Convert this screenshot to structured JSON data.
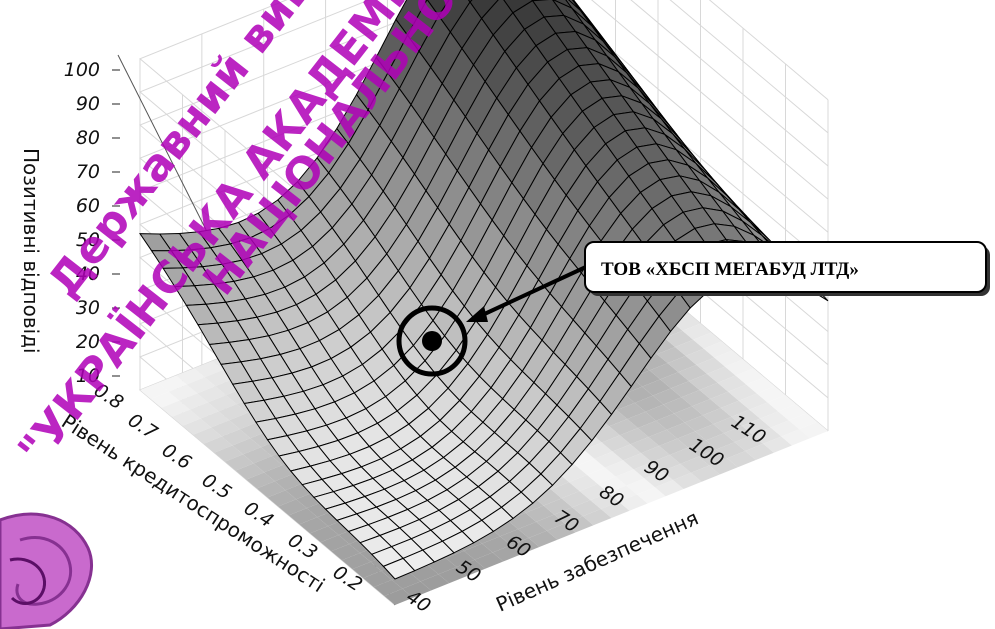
{
  "chart_data": {
    "type": "surface3d",
    "zlabel": "Позитивні відповіді",
    "ylabel": "Рівень кредитоспроможності",
    "xlabel": "Рівень забезпечення",
    "z_ticks": [
      "100",
      "90",
      "80",
      "70",
      "60",
      "50",
      "40",
      "30",
      "20",
      "10"
    ],
    "y_ticks": [
      "0.8",
      "0.7",
      "0.6",
      "0.5",
      "0.4",
      "0.3",
      "0.2"
    ],
    "x_ticks": [
      "40",
      "50",
      "60",
      "70",
      "80",
      "90",
      "100",
      "110"
    ],
    "xlim": [
      40,
      110
    ],
    "ylim": [
      0.2,
      0.8
    ],
    "zlim": [
      0,
      100
    ],
    "grid": true,
    "point": {
      "label": "ТОВ «ХБСП МЕГАБУД ЛТД»",
      "x": 75,
      "y": 0.5,
      "z": 30
    }
  },
  "watermark": {
    "lines": [
      "Державний вищий",
      "\"УКРАЇНСЬКА АКАДЕМІЯ БАНКІВСЬКОЇ СПРАВИ",
      "НАЦІОНАЛЬНОГО БАНКУ"
    ],
    "color": "#b000b8"
  }
}
